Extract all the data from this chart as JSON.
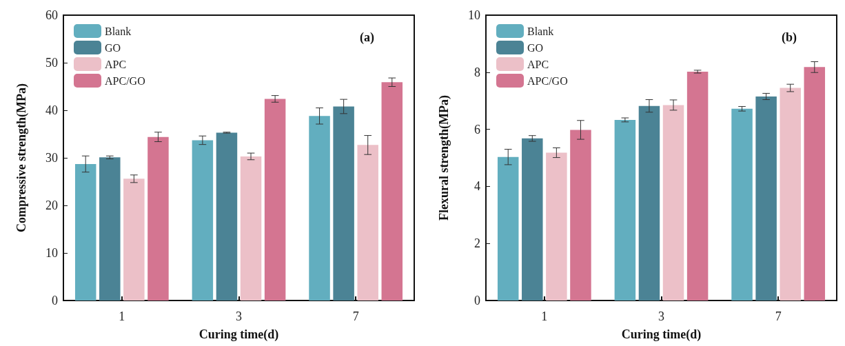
{
  "chart_data": [
    {
      "type": "bar",
      "xlabel": "Curing time(d)",
      "ylabel": "Compressive strength(MPa)",
      "categories": [
        "1",
        "3",
        "7"
      ],
      "ylim": [
        0,
        60
      ],
      "yticks": [
        0,
        10,
        20,
        30,
        40,
        50,
        60
      ],
      "grid": false,
      "legend": "top left",
      "annotations": [
        "(a)"
      ],
      "series": [
        {
          "name": "Blank",
          "color": "#62aebf",
          "values": [
            28.7,
            33.7,
            38.8
          ],
          "errors": [
            1.7,
            0.9,
            1.7
          ]
        },
        {
          "name": "GO",
          "color": "#4b8395",
          "values": [
            30.1,
            35.3,
            40.8
          ],
          "errors": [
            0.3,
            0.1,
            1.5
          ]
        },
        {
          "name": "APC",
          "color": "#ecc0c8",
          "values": [
            25.6,
            30.3,
            32.7
          ],
          "errors": [
            0.8,
            0.7,
            2.0
          ]
        },
        {
          "name": "APC/GO",
          "color": "#d47591",
          "values": [
            34.4,
            42.4,
            45.9
          ],
          "errors": [
            1.0,
            0.7,
            0.9
          ]
        }
      ]
    },
    {
      "type": "bar",
      "xlabel": "Curing time(d)",
      "ylabel": "Flexural strength(MPa)",
      "categories": [
        "1",
        "3",
        "7"
      ],
      "ylim": [
        0,
        10
      ],
      "yticks": [
        0,
        2,
        4,
        6,
        8,
        10
      ],
      "grid": false,
      "legend": "top left",
      "annotations": [
        "(b)"
      ],
      "series": [
        {
          "name": "Blank",
          "color": "#62aebf",
          "values": [
            5.03,
            6.33,
            6.72
          ],
          "errors": [
            0.27,
            0.07,
            0.08
          ]
        },
        {
          "name": "GO",
          "color": "#4b8395",
          "values": [
            5.68,
            6.82,
            7.15
          ],
          "errors": [
            0.1,
            0.22,
            0.11
          ]
        },
        {
          "name": "APC",
          "color": "#ecc0c8",
          "values": [
            5.18,
            6.85,
            7.45
          ],
          "errors": [
            0.17,
            0.18,
            0.13
          ]
        },
        {
          "name": "APC/GO",
          "color": "#d47591",
          "values": [
            5.98,
            8.02,
            8.18
          ],
          "errors": [
            0.33,
            0.05,
            0.19
          ]
        }
      ]
    }
  ]
}
